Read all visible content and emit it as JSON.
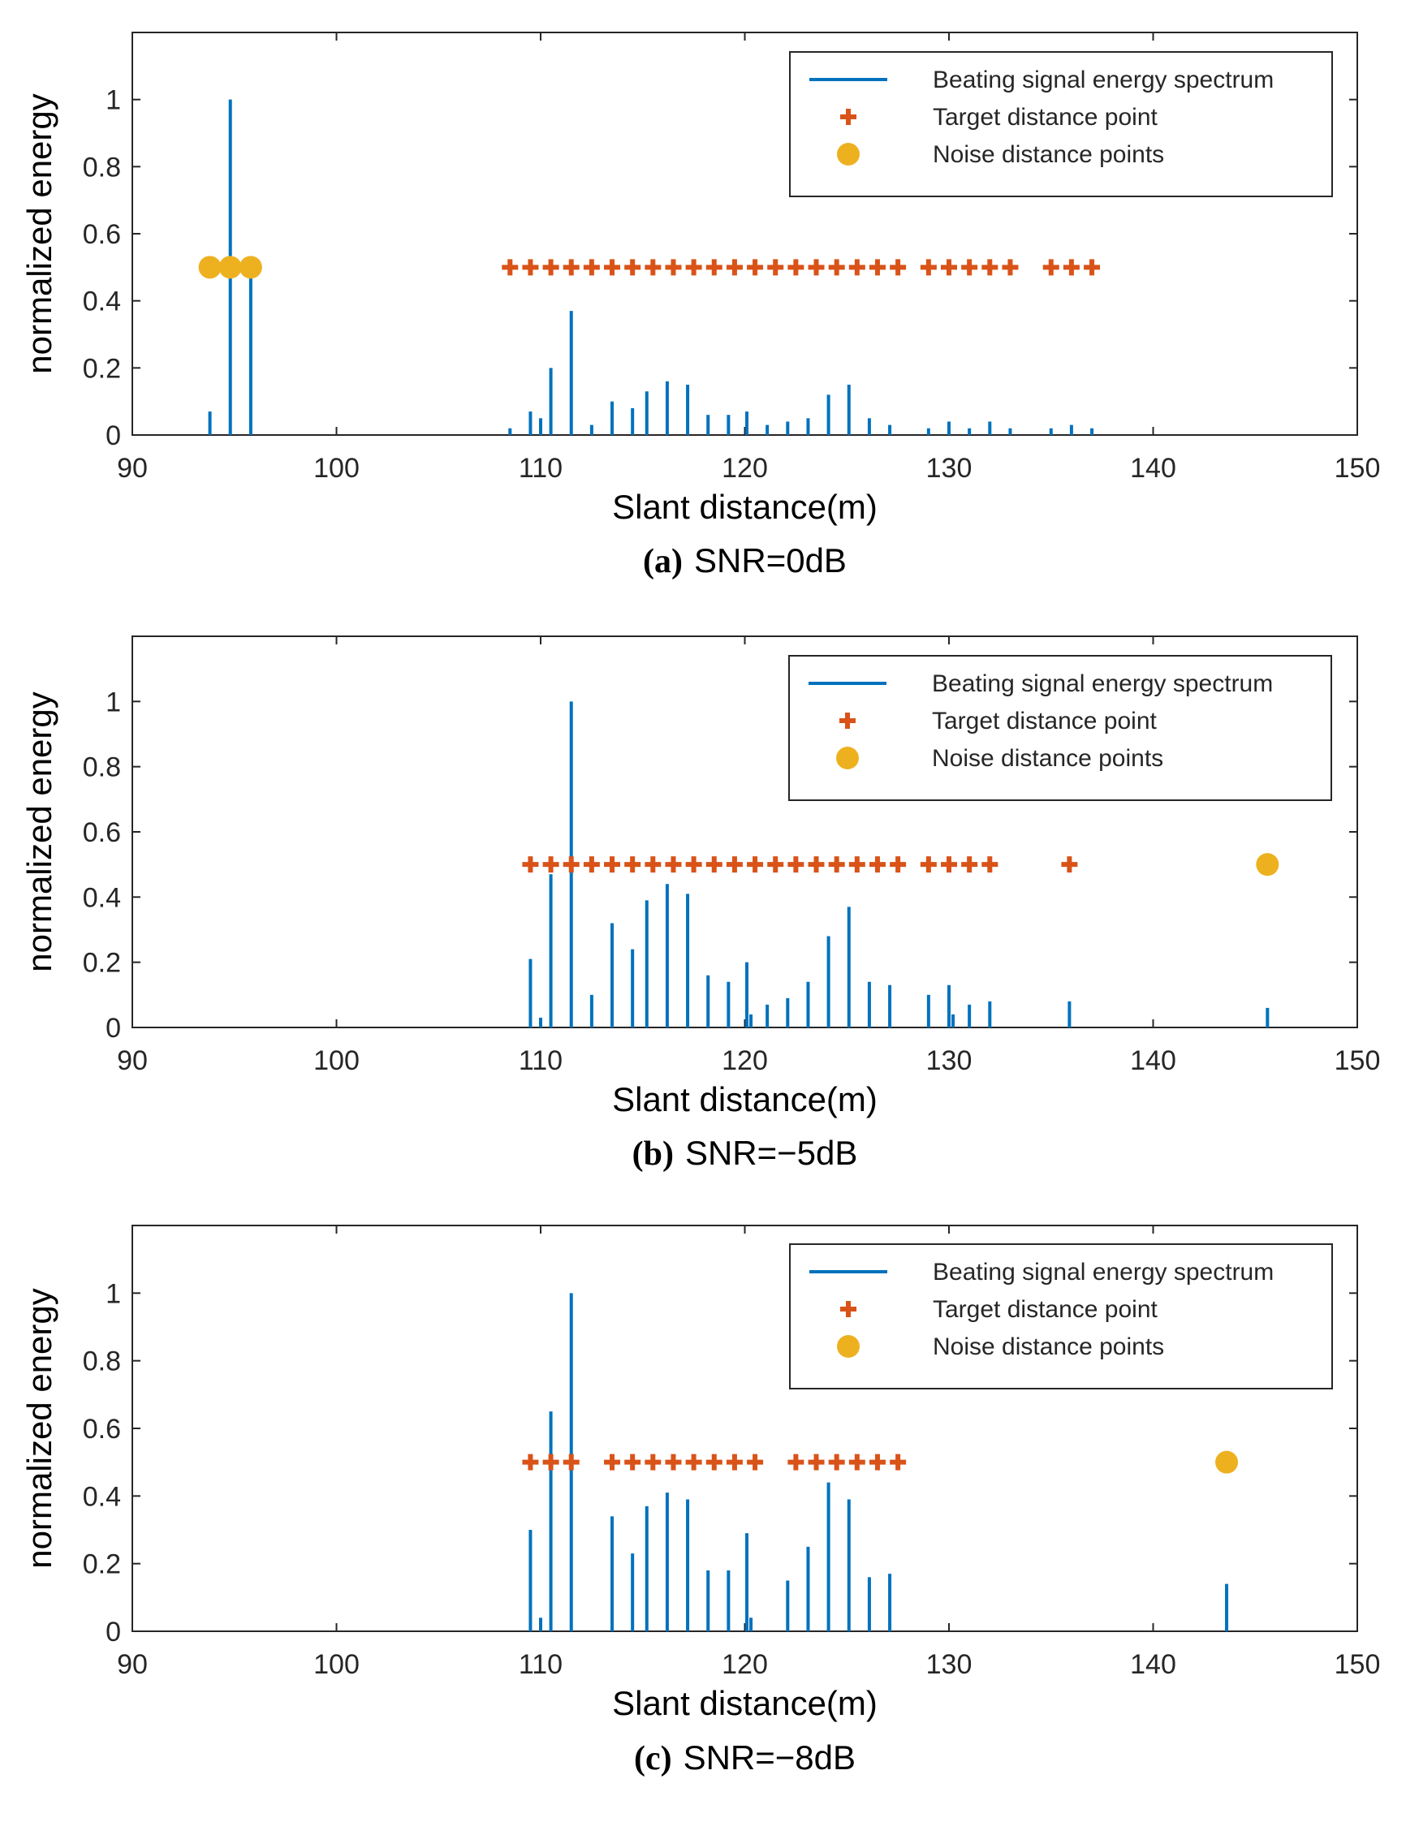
{
  "colors": {
    "spectrum": "#0072BD",
    "target": "#D95319",
    "noise": "#EDB120",
    "axis": "#262626",
    "grid": "#e6e6e6"
  },
  "chart_data": [
    {
      "type": "stem",
      "caption_letter": "(a)",
      "caption_text": "SNR=0dB",
      "xlabel": "Slant distance(m)",
      "ylabel": "normalized energy",
      "xlim": [
        90,
        150
      ],
      "ylim": [
        0,
        1.2
      ],
      "xticks": [
        90,
        100,
        110,
        120,
        130,
        140,
        150
      ],
      "yticks": [
        0,
        0.2,
        0.4,
        0.6,
        0.8,
        1
      ],
      "ytick_labels": [
        "0",
        "0.2",
        "0.4",
        "0.6",
        "0.8",
        "1"
      ],
      "legend": [
        "Beating signal energy spectrum",
        "Target distance point",
        "Noise distance points"
      ],
      "series": [
        {
          "name": "Beating signal energy spectrum",
          "x": [
            93.8,
            94.8,
            95.8,
            108.5,
            109.5,
            110.0,
            110.5,
            111.5,
            112.5,
            113.5,
            114.5,
            115.2,
            116.2,
            117.2,
            118.2,
            119.2,
            120.1,
            121.1,
            122.1,
            123.1,
            124.1,
            125.1,
            126.1,
            127.1,
            129.0,
            130.0,
            131.0,
            132.0,
            133.0,
            135.0,
            136.0,
            137.0
          ],
          "y": [
            0.07,
            1.0,
            0.48,
            0.02,
            0.07,
            0.05,
            0.2,
            0.37,
            0.03,
            0.1,
            0.08,
            0.13,
            0.16,
            0.15,
            0.06,
            0.06,
            0.07,
            0.03,
            0.04,
            0.05,
            0.12,
            0.15,
            0.05,
            0.03,
            0.02,
            0.04,
            0.02,
            0.04,
            0.02,
            0.02,
            0.03,
            0.02
          ]
        },
        {
          "name": "Target distance point",
          "x": [
            108.5,
            109.5,
            110.5,
            111.5,
            112.5,
            113.5,
            114.5,
            115.5,
            116.5,
            117.5,
            118.5,
            119.5,
            120.5,
            121.5,
            122.5,
            123.5,
            124.5,
            125.5,
            126.5,
            127.5,
            129.0,
            130.0,
            131.0,
            132.0,
            133.0,
            135.0,
            136.0,
            137.0
          ],
          "y": [
            0.5,
            0.5,
            0.5,
            0.5,
            0.5,
            0.5,
            0.5,
            0.5,
            0.5,
            0.5,
            0.5,
            0.5,
            0.5,
            0.5,
            0.5,
            0.5,
            0.5,
            0.5,
            0.5,
            0.5,
            0.5,
            0.5,
            0.5,
            0.5,
            0.5,
            0.5,
            0.5,
            0.5
          ]
        },
        {
          "name": "Noise distance points",
          "x": [
            93.8,
            94.8,
            95.8
          ],
          "y": [
            0.5,
            0.5,
            0.5
          ]
        }
      ]
    },
    {
      "type": "stem",
      "caption_letter": "(b)",
      "caption_text": "SNR=−5dB",
      "xlabel": "Slant distance(m)",
      "ylabel": "normalized energy",
      "xlim": [
        90,
        150
      ],
      "ylim": [
        0,
        1.2
      ],
      "xticks": [
        90,
        100,
        110,
        120,
        130,
        140,
        150
      ],
      "yticks": [
        0,
        0.2,
        0.4,
        0.6,
        0.8,
        1
      ],
      "ytick_labels": [
        "0",
        "0.2",
        "0.4",
        "0.6",
        "0.8",
        "1"
      ],
      "legend": [
        "Beating signal energy spectrum",
        "Target distance point",
        "Noise distance points"
      ],
      "series": [
        {
          "name": "Beating signal energy spectrum",
          "x": [
            109.5,
            110.0,
            110.5,
            111.5,
            112.5,
            113.5,
            114.5,
            115.2,
            116.2,
            117.2,
            118.2,
            119.2,
            120.1,
            120.3,
            121.1,
            122.1,
            123.1,
            124.1,
            125.1,
            126.1,
            127.1,
            129.0,
            130.0,
            130.2,
            131.0,
            132.0,
            135.9,
            145.6
          ],
          "y": [
            0.21,
            0.03,
            0.47,
            1.0,
            0.1,
            0.32,
            0.24,
            0.39,
            0.44,
            0.41,
            0.16,
            0.14,
            0.2,
            0.04,
            0.07,
            0.09,
            0.14,
            0.28,
            0.37,
            0.14,
            0.13,
            0.1,
            0.13,
            0.04,
            0.07,
            0.08,
            0.08,
            0.06
          ]
        },
        {
          "name": "Target distance point",
          "x": [
            109.5,
            110.5,
            111.5,
            112.5,
            113.5,
            114.5,
            115.5,
            116.5,
            117.5,
            118.5,
            119.5,
            120.5,
            121.5,
            122.5,
            123.5,
            124.5,
            125.5,
            126.5,
            127.5,
            129.0,
            130.0,
            131.0,
            132.0,
            135.9
          ],
          "y": [
            0.5,
            0.5,
            0.5,
            0.5,
            0.5,
            0.5,
            0.5,
            0.5,
            0.5,
            0.5,
            0.5,
            0.5,
            0.5,
            0.5,
            0.5,
            0.5,
            0.5,
            0.5,
            0.5,
            0.5,
            0.5,
            0.5,
            0.5,
            0.5
          ]
        },
        {
          "name": "Noise distance points",
          "x": [
            145.6
          ],
          "y": [
            0.5
          ]
        }
      ]
    },
    {
      "type": "stem",
      "caption_letter": "(c)",
      "caption_text": "SNR=−8dB",
      "xlabel": "Slant distance(m)",
      "ylabel": "normalized energy",
      "xlim": [
        90,
        150
      ],
      "ylim": [
        0,
        1.2
      ],
      "xticks": [
        90,
        100,
        110,
        120,
        130,
        140,
        150
      ],
      "yticks": [
        0,
        0.2,
        0.4,
        0.6,
        0.8,
        1
      ],
      "ytick_labels": [
        "0",
        "0.2",
        "0.4",
        "0.6",
        "0.8",
        "1"
      ],
      "legend": [
        "Beating signal energy spectrum",
        "Target distance point",
        "Noise distance points"
      ],
      "series": [
        {
          "name": "Beating signal energy spectrum",
          "x": [
            109.5,
            110.0,
            110.5,
            111.5,
            113.5,
            114.5,
            115.2,
            116.2,
            117.2,
            118.2,
            119.2,
            120.1,
            120.3,
            122.1,
            123.1,
            124.1,
            125.1,
            126.1,
            127.1,
            143.6
          ],
          "y": [
            0.3,
            0.04,
            0.65,
            1.0,
            0.34,
            0.23,
            0.37,
            0.41,
            0.39,
            0.18,
            0.18,
            0.29,
            0.04,
            0.15,
            0.25,
            0.44,
            0.39,
            0.16,
            0.17,
            0.14
          ]
        },
        {
          "name": "Target distance point",
          "x": [
            109.5,
            110.5,
            111.5,
            113.5,
            114.5,
            115.5,
            116.5,
            117.5,
            118.5,
            119.5,
            120.5,
            122.5,
            123.5,
            124.5,
            125.5,
            126.5,
            127.5
          ],
          "y": [
            0.5,
            0.5,
            0.5,
            0.5,
            0.5,
            0.5,
            0.5,
            0.5,
            0.5,
            0.5,
            0.5,
            0.5,
            0.5,
            0.5,
            0.5,
            0.5,
            0.5
          ]
        },
        {
          "name": "Noise distance points",
          "x": [
            143.6
          ],
          "y": [
            0.5
          ]
        }
      ]
    }
  ]
}
